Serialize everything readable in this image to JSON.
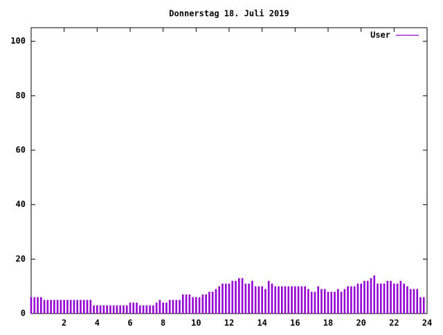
{
  "chart_data": {
    "type": "impulse",
    "title": "Donnerstag 18. Juli 2019",
    "x": [
      0,
      0.2,
      0.4,
      0.6,
      0.8,
      1,
      1.2,
      1.4,
      1.6,
      1.8,
      2,
      2.2,
      2.4,
      2.6,
      2.8,
      3,
      3.2,
      3.4,
      3.6,
      3.8,
      4,
      4.2,
      4.4,
      4.6,
      4.8,
      5,
      5.2,
      5.4,
      5.6,
      5.8,
      6,
      6.2,
      6.4,
      6.6,
      6.8,
      7,
      7.2,
      7.4,
      7.6,
      7.8,
      8,
      8.2,
      8.4,
      8.6,
      8.8,
      9,
      9.2,
      9.4,
      9.6,
      9.8,
      10,
      10.2,
      10.4,
      10.6,
      10.8,
      11,
      11.2,
      11.4,
      11.6,
      11.8,
      12,
      12.2,
      12.4,
      12.6,
      12.8,
      13,
      13.2,
      13.4,
      13.6,
      13.8,
      14,
      14.2,
      14.4,
      14.6,
      14.8,
      15,
      15.2,
      15.4,
      15.6,
      15.8,
      16,
      16.2,
      16.4,
      16.6,
      16.8,
      17,
      17.2,
      17.4,
      17.6,
      17.8,
      18,
      18.2,
      18.4,
      18.6,
      18.8,
      19,
      19.2,
      19.4,
      19.6,
      19.8,
      20,
      20.2,
      20.4,
      20.6,
      20.8,
      21,
      21.2,
      21.4,
      21.6,
      21.8,
      22,
      22.2,
      22.4,
      22.6,
      22.8,
      23,
      23.2,
      23.4,
      23.6,
      23.8
    ],
    "series": [
      {
        "name": "User",
        "color": "#9400d3",
        "values": [
          6,
          6,
          6,
          6,
          5,
          5,
          5,
          5,
          5,
          5,
          5,
          5,
          5,
          5,
          5,
          5,
          5,
          5,
          5,
          3,
          3,
          3,
          3,
          3,
          3,
          3,
          3,
          3,
          3,
          3,
          4,
          4,
          4,
          3,
          3,
          3,
          3,
          3,
          4,
          5,
          4,
          4,
          5,
          5,
          5,
          5,
          7,
          7,
          7,
          6,
          6,
          6,
          7,
          7,
          8,
          8,
          9,
          10,
          11,
          11,
          11,
          12,
          12,
          13,
          13,
          11,
          11,
          12,
          10,
          10,
          10,
          9,
          12,
          11,
          10,
          10,
          10,
          10,
          10,
          10,
          10,
          10,
          10,
          10,
          9,
          8,
          8,
          10,
          9,
          9,
          8,
          8,
          8,
          9,
          8,
          9,
          10,
          10,
          10,
          11,
          11,
          12,
          12,
          13,
          14,
          11,
          11,
          11,
          12,
          12,
          11,
          11,
          12,
          11,
          10,
          9,
          9,
          9,
          6,
          6
        ]
      }
    ],
    "xlim": [
      0,
      24
    ],
    "xticks": [
      2,
      4,
      6,
      8,
      10,
      12,
      14,
      16,
      18,
      20,
      22,
      24
    ],
    "ylim": [
      0,
      105
    ],
    "yticks": [
      0,
      20,
      40,
      60,
      80,
      100
    ],
    "legend": "upper right"
  }
}
